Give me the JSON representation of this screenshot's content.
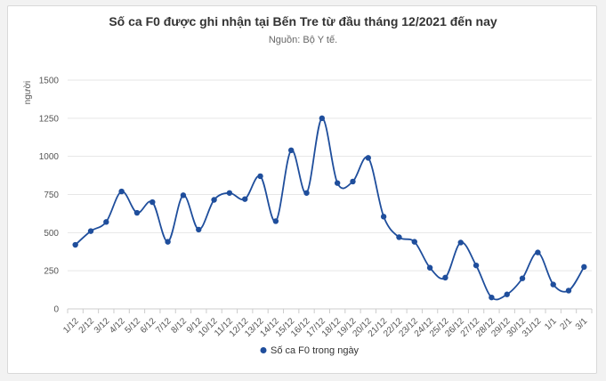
{
  "chart_data": {
    "type": "line",
    "title": "Số ca F0 được ghi nhận tại Bến Tre từ đầu tháng 12/2021 đến nay",
    "subtitle": "Nguồn: Bộ Y tế.",
    "ylabel": "người",
    "xlabel": "",
    "ylim": [
      0,
      1500
    ],
    "yticks": [
      0,
      250,
      500,
      750,
      1000,
      1250,
      1500
    ],
    "grid": true,
    "legend_position": "bottom",
    "categories": [
      "1/12",
      "2/12",
      "3/12",
      "4/12",
      "5/12",
      "6/12",
      "7/12",
      "8/12",
      "9/12",
      "10/12",
      "11/12",
      "12/12",
      "13/12",
      "14/12",
      "15/12",
      "16/12",
      "17/12",
      "18/12",
      "19/12",
      "20/12",
      "21/12",
      "22/12",
      "23/12",
      "24/12",
      "25/12",
      "26/12",
      "27/12",
      "28/12",
      "29/12",
      "30/12",
      "31/12",
      "1/1",
      "2/1",
      "3/1"
    ],
    "series": [
      {
        "name": "Số ca F0 trong ngày",
        "color": "#1f4e9c",
        "values": [
          420,
          510,
          570,
          770,
          630,
          700,
          440,
          745,
          520,
          715,
          760,
          720,
          870,
          575,
          1040,
          760,
          1250,
          825,
          835,
          990,
          605,
          470,
          440,
          270,
          205,
          435,
          285,
          75,
          95,
          200,
          370,
          160,
          120,
          275
        ]
      }
    ]
  }
}
